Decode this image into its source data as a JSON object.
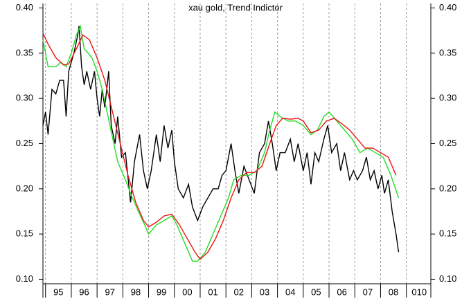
{
  "chart_data": {
    "type": "line",
    "title": "xau gold, Trend Indictor",
    "xlim": [
      1994.9,
      2009.95
    ],
    "ylim": [
      0.095,
      0.405
    ],
    "yticks": [
      {
        "value": 0.1,
        "label": "0.10"
      },
      {
        "value": 0.15,
        "label": "0.15"
      },
      {
        "value": 0.2,
        "label": "0.20"
      },
      {
        "value": 0.25,
        "label": "0.25"
      },
      {
        "value": 0.3,
        "label": "0.30"
      },
      {
        "value": 0.35,
        "label": "0.35"
      },
      {
        "value": 0.4,
        "label": "0.40"
      }
    ],
    "xticks": [
      {
        "value": 1995.5,
        "label": "95"
      },
      {
        "value": 1996.5,
        "label": "96"
      },
      {
        "value": 1997.5,
        "label": "97"
      },
      {
        "value": 1998.5,
        "label": "98"
      },
      {
        "value": 1999.5,
        "label": "99"
      },
      {
        "value": 2000.5,
        "label": "00"
      },
      {
        "value": 2001.5,
        "label": "01"
      },
      {
        "value": 2002.5,
        "label": "02"
      },
      {
        "value": 2003.5,
        "label": "03"
      },
      {
        "value": 2004.5,
        "label": "04"
      },
      {
        "value": 2005.5,
        "label": "05"
      },
      {
        "value": 2006.5,
        "label": "06"
      },
      {
        "value": 2007.5,
        "label": "07"
      },
      {
        "value": 2008.5,
        "label": "08"
      },
      {
        "value": 2009.5,
        "label": "010"
      }
    ],
    "xgrid": [
      1995,
      1996,
      1997,
      1998,
      1999,
      2000,
      2001,
      2002,
      2003,
      2004,
      2005,
      2006,
      2007,
      2008,
      2009
    ],
    "grid": true,
    "series": [
      {
        "color": "#000000",
        "x": [
          1994.9,
          1995.0,
          1995.1,
          1995.25,
          1995.4,
          1995.55,
          1995.7,
          1995.8,
          1995.9,
          1996.1,
          1996.25,
          1996.3,
          1996.4,
          1996.5,
          1996.6,
          1996.75,
          1996.9,
          1997.0,
          1997.1,
          1997.2,
          1997.3,
          1997.45,
          1997.55,
          1997.7,
          1997.8,
          1997.95,
          1998.1,
          1998.3,
          1998.45,
          1998.65,
          1998.8,
          1998.95,
          1999.1,
          1999.3,
          1999.45,
          1999.6,
          1999.75,
          1999.9,
          2000.0,
          2000.15,
          2000.35,
          2000.55,
          2000.7,
          2000.9,
          2001.1,
          2001.3,
          2001.5,
          2001.7,
          2001.85,
          2002.0,
          2002.2,
          2002.35,
          2002.5,
          2002.7,
          2002.9,
          2003.1,
          2003.3,
          2003.5,
          2003.65,
          2003.8,
          2003.95,
          2004.1,
          2004.3,
          2004.5,
          2004.65,
          2004.8,
          2005.0,
          2005.15,
          2005.3,
          2005.45,
          2005.6,
          2005.8,
          2005.95,
          2006.1,
          2006.3,
          2006.45,
          2006.6,
          2006.8,
          2006.95,
          2007.1,
          2007.3,
          2007.45,
          2007.6,
          2007.75,
          2007.9,
          2008.05,
          2008.15,
          2008.3,
          2008.45,
          2008.6,
          2008.7
        ],
        "values": [
          0.27,
          0.285,
          0.26,
          0.31,
          0.305,
          0.32,
          0.32,
          0.28,
          0.33,
          0.35,
          0.37,
          0.38,
          0.335,
          0.315,
          0.33,
          0.31,
          0.33,
          0.3,
          0.28,
          0.31,
          0.29,
          0.33,
          0.27,
          0.25,
          0.28,
          0.235,
          0.24,
          0.185,
          0.23,
          0.26,
          0.22,
          0.2,
          0.22,
          0.26,
          0.23,
          0.27,
          0.245,
          0.265,
          0.23,
          0.2,
          0.19,
          0.205,
          0.18,
          0.165,
          0.18,
          0.19,
          0.2,
          0.2,
          0.215,
          0.22,
          0.25,
          0.22,
          0.195,
          0.225,
          0.21,
          0.195,
          0.24,
          0.25,
          0.275,
          0.25,
          0.22,
          0.24,
          0.24,
          0.255,
          0.23,
          0.25,
          0.22,
          0.24,
          0.205,
          0.24,
          0.23,
          0.255,
          0.27,
          0.24,
          0.25,
          0.22,
          0.24,
          0.21,
          0.22,
          0.21,
          0.22,
          0.235,
          0.21,
          0.22,
          0.2,
          0.215,
          0.195,
          0.21,
          0.175,
          0.15,
          0.13
        ]
      },
      {
        "color": "#22dd22",
        "x": [
          1994.9,
          1995.1,
          1995.4,
          1995.6,
          1995.8,
          1996.0,
          1996.2,
          1996.35,
          1996.5,
          1996.8,
          1997.0,
          1997.2,
          1997.5,
          1997.8,
          1998.1,
          1998.3,
          1998.6,
          1998.85,
          1999.0,
          1999.3,
          1999.6,
          1999.9,
          2000.1,
          2000.4,
          2000.7,
          2000.9,
          2001.2,
          2001.5,
          2001.8,
          2002.1,
          2002.3,
          2002.6,
          2002.9,
          2003.2,
          2003.5,
          2003.7,
          2003.9,
          2004.1,
          2004.4,
          2004.7,
          2005.0,
          2005.3,
          2005.55,
          2005.8,
          2006.0,
          2006.3,
          2006.6,
          2006.9,
          2007.2,
          2007.5,
          2007.8,
          2008.1,
          2008.4,
          2008.7
        ],
        "values": [
          0.365,
          0.335,
          0.335,
          0.34,
          0.335,
          0.35,
          0.37,
          0.38,
          0.355,
          0.345,
          0.33,
          0.31,
          0.27,
          0.23,
          0.21,
          0.195,
          0.175,
          0.16,
          0.15,
          0.16,
          0.165,
          0.17,
          0.16,
          0.14,
          0.12,
          0.12,
          0.13,
          0.15,
          0.17,
          0.19,
          0.21,
          0.215,
          0.215,
          0.22,
          0.24,
          0.265,
          0.285,
          0.28,
          0.275,
          0.275,
          0.27,
          0.26,
          0.265,
          0.28,
          0.285,
          0.275,
          0.265,
          0.255,
          0.24,
          0.245,
          0.24,
          0.235,
          0.215,
          0.19
        ]
      },
      {
        "color": "#ee1111",
        "x": [
          1994.9,
          1995.1,
          1995.4,
          1995.7,
          1995.9,
          1996.2,
          1996.45,
          1996.7,
          1997.0,
          1997.3,
          1997.6,
          1997.9,
          1998.2,
          1998.5,
          1998.8,
          1999.0,
          1999.3,
          1999.6,
          1999.9,
          2000.2,
          2000.5,
          2000.8,
          2001.0,
          2001.3,
          2001.6,
          2001.9,
          2002.2,
          2002.5,
          2002.8,
          2003.1,
          2003.4,
          2003.7,
          2003.95,
          2004.2,
          2004.5,
          2004.8,
          2005.0,
          2005.3,
          2005.6,
          2005.9,
          2006.2,
          2006.5,
          2006.8,
          2007.1,
          2007.4,
          2007.7,
          2008.0,
          2008.3,
          2008.6
        ],
        "values": [
          0.372,
          0.36,
          0.345,
          0.337,
          0.338,
          0.355,
          0.37,
          0.365,
          0.345,
          0.32,
          0.285,
          0.25,
          0.215,
          0.185,
          0.165,
          0.158,
          0.163,
          0.17,
          0.172,
          0.16,
          0.145,
          0.13,
          0.122,
          0.13,
          0.145,
          0.165,
          0.19,
          0.21,
          0.218,
          0.218,
          0.225,
          0.25,
          0.27,
          0.278,
          0.277,
          0.278,
          0.275,
          0.262,
          0.265,
          0.275,
          0.278,
          0.272,
          0.265,
          0.255,
          0.245,
          0.245,
          0.24,
          0.235,
          0.215
        ]
      }
    ]
  }
}
